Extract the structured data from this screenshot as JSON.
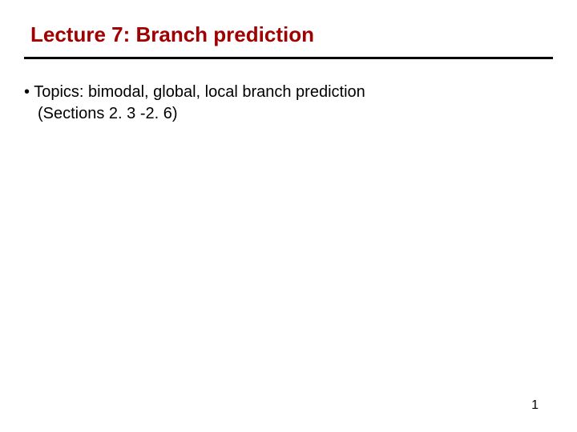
{
  "slide": {
    "title": "Lecture 7: Branch prediction",
    "title_color": "#a00000",
    "title_fontsize": 26,
    "underline_color": "#000000",
    "underline_width": 3,
    "bullets": [
      {
        "marker": "•",
        "line1": " Topics: bimodal, global, local branch prediction",
        "line2": "(Sections 2. 3 -2. 6)"
      }
    ],
    "body_fontsize": 20,
    "body_color": "#000000",
    "page_number": "1",
    "background_color": "#ffffff"
  }
}
